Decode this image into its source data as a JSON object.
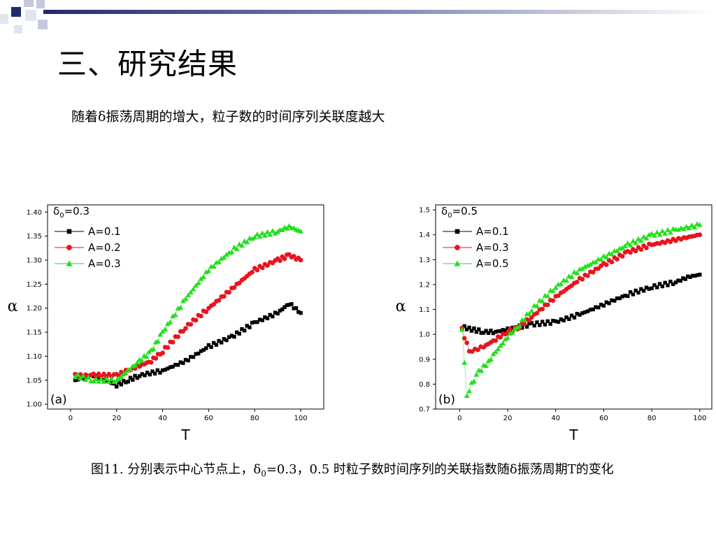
{
  "slide": {
    "title": "三、研究结果",
    "subtitle": "随着δ振荡周期的增大，粒子数的时间序列关联度越大"
  },
  "caption": {
    "part1": "图11. 分别表示中心节点上，δ",
    "sub": "0",
    "part2": "=0.3，0.5 时粒子数时间序列的关联指数随δ振荡周期T的变化"
  },
  "colors": {
    "black": "#000000",
    "red": "#e8141e",
    "green": "#22e01c",
    "deco_navy": "#1f2a6e"
  },
  "chart_data": [
    {
      "type": "scatter",
      "panel_label": "(a)",
      "legend_title": "δ0=0.3",
      "xlabel": "T",
      "ylabel": "α",
      "xlim": [
        -10,
        110
      ],
      "ylim": [
        0.99,
        1.415
      ],
      "xticks": [
        0,
        20,
        40,
        60,
        80,
        100
      ],
      "yticks": [
        1.0,
        1.05,
        1.1,
        1.15,
        1.2,
        1.25,
        1.3,
        1.35,
        1.4
      ],
      "legend_position": "top-left",
      "series": [
        {
          "name": "A=0.1",
          "marker": "square",
          "color": "#000000",
          "x": [
            2,
            10,
            20,
            25,
            30,
            40,
            50,
            60,
            70,
            80,
            90,
            95,
            100
          ],
          "y": [
            1.05,
            1.06,
            1.04,
            1.05,
            1.06,
            1.07,
            1.09,
            1.12,
            1.14,
            1.17,
            1.19,
            1.21,
            1.19
          ]
        },
        {
          "name": "A=0.2",
          "marker": "circle",
          "color": "#e8141e",
          "x": [
            2,
            10,
            20,
            25,
            30,
            35,
            40,
            50,
            60,
            70,
            80,
            90,
            95,
            100
          ],
          "y": [
            1.06,
            1.06,
            1.06,
            1.07,
            1.08,
            1.09,
            1.11,
            1.16,
            1.2,
            1.24,
            1.28,
            1.3,
            1.31,
            1.3
          ]
        },
        {
          "name": "A=0.3",
          "marker": "triangle",
          "color": "#22e01c",
          "x": [
            2,
            10,
            20,
            25,
            30,
            35,
            40,
            50,
            60,
            70,
            80,
            90,
            95,
            100
          ],
          "y": [
            1.06,
            1.05,
            1.05,
            1.07,
            1.09,
            1.11,
            1.15,
            1.22,
            1.28,
            1.32,
            1.35,
            1.36,
            1.37,
            1.36
          ]
        }
      ]
    },
    {
      "type": "scatter",
      "panel_label": "(b)",
      "legend_title": "δ0=0.5",
      "xlabel": "T",
      "ylabel": "α",
      "xlim": [
        -10,
        105
      ],
      "ylim": [
        0.7,
        1.52
      ],
      "xticks": [
        0,
        20,
        40,
        60,
        80,
        100
      ],
      "yticks": [
        0.7,
        0.8,
        0.9,
        1.0,
        1.1,
        1.2,
        1.3,
        1.4,
        1.5
      ],
      "legend_position": "top-left",
      "series": [
        {
          "name": "A=0.1",
          "marker": "square",
          "color": "#000000",
          "x": [
            1,
            5,
            10,
            15,
            20,
            25,
            30,
            40,
            50,
            60,
            70,
            80,
            90,
            95,
            100
          ],
          "y": [
            1.03,
            1.02,
            1.01,
            1.01,
            1.02,
            1.03,
            1.04,
            1.05,
            1.08,
            1.12,
            1.16,
            1.19,
            1.21,
            1.23,
            1.24
          ]
        },
        {
          "name": "A=0.3",
          "marker": "circle",
          "color": "#e8141e",
          "x": [
            1,
            4,
            10,
            15,
            20,
            25,
            30,
            40,
            50,
            60,
            70,
            80,
            90,
            100
          ],
          "y": [
            1.02,
            0.93,
            0.95,
            0.98,
            1.01,
            1.03,
            1.07,
            1.15,
            1.22,
            1.28,
            1.33,
            1.36,
            1.38,
            1.4
          ]
        },
        {
          "name": "A=0.5",
          "marker": "triangle",
          "color": "#22e01c",
          "x": [
            1,
            3,
            5,
            8,
            12,
            15,
            20,
            25,
            30,
            40,
            50,
            60,
            70,
            80,
            90,
            100
          ],
          "y": [
            1.02,
            0.75,
            0.8,
            0.85,
            0.89,
            0.93,
            0.99,
            1.04,
            1.1,
            1.19,
            1.26,
            1.31,
            1.36,
            1.4,
            1.42,
            1.44
          ]
        }
      ]
    }
  ]
}
